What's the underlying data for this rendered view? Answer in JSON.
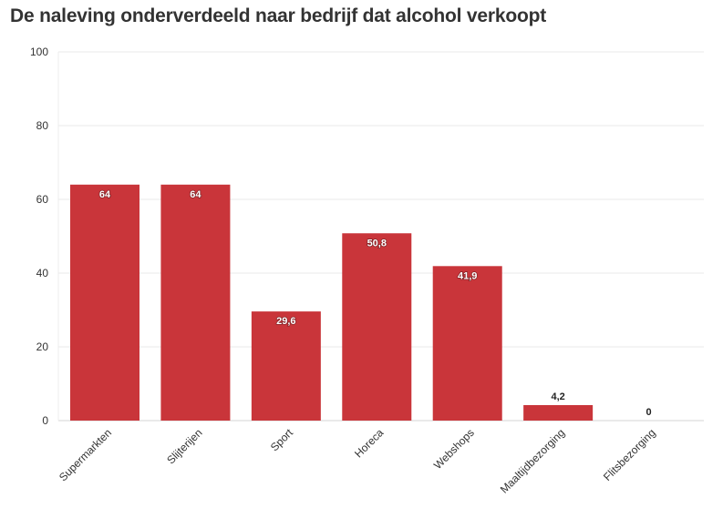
{
  "chart_data": {
    "type": "bar",
    "title": "De naleving onderverdeeld naar bedrijf dat alcohol verkoopt",
    "xlabel": "",
    "ylabel": "",
    "ylim": [
      0,
      100
    ],
    "yticks": [
      0,
      20,
      40,
      60,
      80,
      100
    ],
    "grid": true,
    "categories": [
      "Supermarkten",
      "Slijterijen",
      "Sport",
      "Horeca",
      "Webshops",
      "Maaltijdbezorging",
      "Flitsbezorging"
    ],
    "values": [
      64,
      64,
      29.6,
      50.8,
      41.9,
      4.2,
      0
    ],
    "value_labels": [
      "64",
      "64",
      "29,6",
      "50,8",
      "41,9",
      "4,2",
      "0"
    ],
    "bar_color": "#c9353a",
    "gridline_color": "#e9e9e9"
  }
}
